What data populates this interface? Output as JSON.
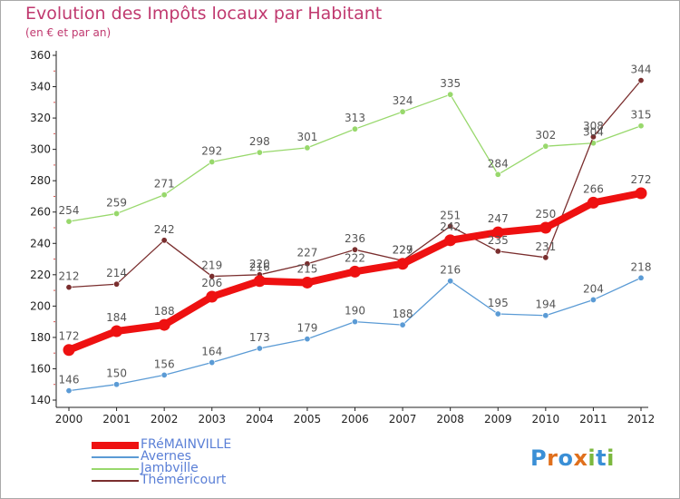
{
  "header": {
    "title": "Evolution des Impôts locaux par Habitant",
    "subtitle": "(en € et par an)"
  },
  "logo": {
    "text": "Proxiti",
    "colors": [
      "#3a8fd6",
      "#e0701d",
      "#3a8fd6",
      "#e0701d",
      "#7cb83e",
      "#3a8fd6",
      "#7cb83e"
    ]
  },
  "colors": {
    "title": "#c0396f",
    "axis": "#222222",
    "grid_tick": "#d9534f"
  },
  "chart_data": {
    "type": "line",
    "title": "Evolution des Impôts locaux par Habitant",
    "subtitle": "(en € et par an)",
    "xlabel": "",
    "ylabel": "",
    "x": [
      "2000",
      "2001",
      "2002",
      "2003",
      "2004",
      "2005",
      "2006",
      "2007",
      "2008",
      "2009",
      "2010",
      "2011",
      "2012"
    ],
    "ylim": [
      140,
      360
    ],
    "yticks": [
      "140",
      "160",
      "180",
      "200",
      "220",
      "240",
      "260",
      "280",
      "300",
      "320",
      "340",
      "360"
    ],
    "grid": false,
    "legend_position": "bottom-left",
    "series": [
      {
        "name": "FRéMAINVILLE",
        "color": "#ee1111",
        "values": [
          172,
          184,
          188,
          206,
          216,
          215,
          222,
          227,
          242,
          247,
          250,
          266,
          272
        ]
      },
      {
        "name": "Avernes",
        "color": "#5b9bd5",
        "values": [
          146,
          150,
          156,
          164,
          173,
          179,
          190,
          188,
          216,
          195,
          194,
          204,
          218
        ]
      },
      {
        "name": "Jambville",
        "color": "#98d86c",
        "values": [
          254,
          259,
          271,
          292,
          298,
          301,
          313,
          324,
          335,
          284,
          302,
          304,
          315
        ]
      },
      {
        "name": "Théméricourt",
        "color": "#7a2e2e",
        "values": [
          212,
          214,
          242,
          219,
          220,
          227,
          236,
          229,
          251,
          235,
          231,
          308,
          344
        ]
      }
    ]
  }
}
